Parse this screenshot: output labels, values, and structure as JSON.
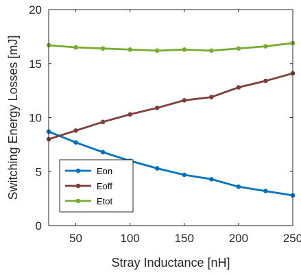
{
  "chart_data": {
    "type": "line",
    "title": "",
    "xlabel": "Stray Inductance [nH]",
    "ylabel": "Switching Energy Losses [mJ]",
    "xlim": [
      25,
      250
    ],
    "ylim": [
      0,
      20
    ],
    "xticks": [
      50,
      100,
      150,
      200,
      250
    ],
    "yticks": [
      0,
      5,
      10,
      15,
      20
    ],
    "grid": false,
    "legend_position": "bottom-left",
    "x": [
      25,
      50,
      75,
      100,
      125,
      150,
      175,
      200,
      225,
      250
    ],
    "series": [
      {
        "name": "Eon",
        "color": "#0072BD",
        "values": [
          8.7,
          7.7,
          6.8,
          6.0,
          5.3,
          4.7,
          4.3,
          3.6,
          3.2,
          2.8
        ]
      },
      {
        "name": "Eoff",
        "color": "#7E3E3A",
        "values": [
          8.0,
          8.8,
          9.6,
          10.3,
          10.9,
          11.6,
          11.9,
          12.8,
          13.4,
          14.1
        ]
      },
      {
        "name": "Etot",
        "color": "#77AC30",
        "values": [
          16.7,
          16.5,
          16.4,
          16.3,
          16.2,
          16.3,
          16.2,
          16.4,
          16.6,
          16.9
        ]
      }
    ]
  }
}
